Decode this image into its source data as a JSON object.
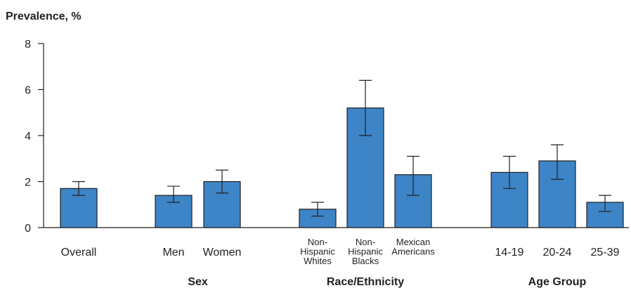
{
  "chart_data": {
    "type": "bar",
    "ylabel": "Prevalence, %",
    "ylim": [
      0,
      8
    ],
    "yticks": [
      0,
      2,
      4,
      6,
      8
    ],
    "bar_color": "#3d85c6",
    "categories": [
      {
        "label": [
          "Overall"
        ],
        "value": 1.7,
        "err_low": 1.4,
        "err_high": 2.0
      },
      {
        "label": [
          "Men"
        ],
        "value": 1.4,
        "err_low": 1.1,
        "err_high": 1.8
      },
      {
        "label": [
          "Women"
        ],
        "value": 2.0,
        "err_low": 1.5,
        "err_high": 2.5
      },
      {
        "label": [
          "Non-",
          "Hispanic",
          "Whites"
        ],
        "value": 0.8,
        "err_low": 0.5,
        "err_high": 1.1
      },
      {
        "label": [
          "Non-",
          "Hispanic",
          "Blacks"
        ],
        "value": 5.2,
        "err_low": 4.0,
        "err_high": 6.4
      },
      {
        "label": [
          "Mexican",
          "Americans"
        ],
        "value": 2.3,
        "err_low": 1.4,
        "err_high": 3.1
      },
      {
        "label": [
          "14-19"
        ],
        "value": 2.4,
        "err_low": 1.7,
        "err_high": 3.1
      },
      {
        "label": [
          "20-24"
        ],
        "value": 2.9,
        "err_low": 2.1,
        "err_high": 3.6
      },
      {
        "label": [
          "25-39"
        ],
        "value": 1.1,
        "err_low": 0.7,
        "err_high": 1.4
      }
    ],
    "groups": [
      {
        "label": "",
        "members": [
          0
        ]
      },
      {
        "label": "Sex",
        "members": [
          1,
          2
        ]
      },
      {
        "label": "Race/Ethnicity",
        "members": [
          3,
          4,
          5
        ]
      },
      {
        "label": "Age Group",
        "members": [
          6,
          7,
          8
        ]
      }
    ]
  }
}
